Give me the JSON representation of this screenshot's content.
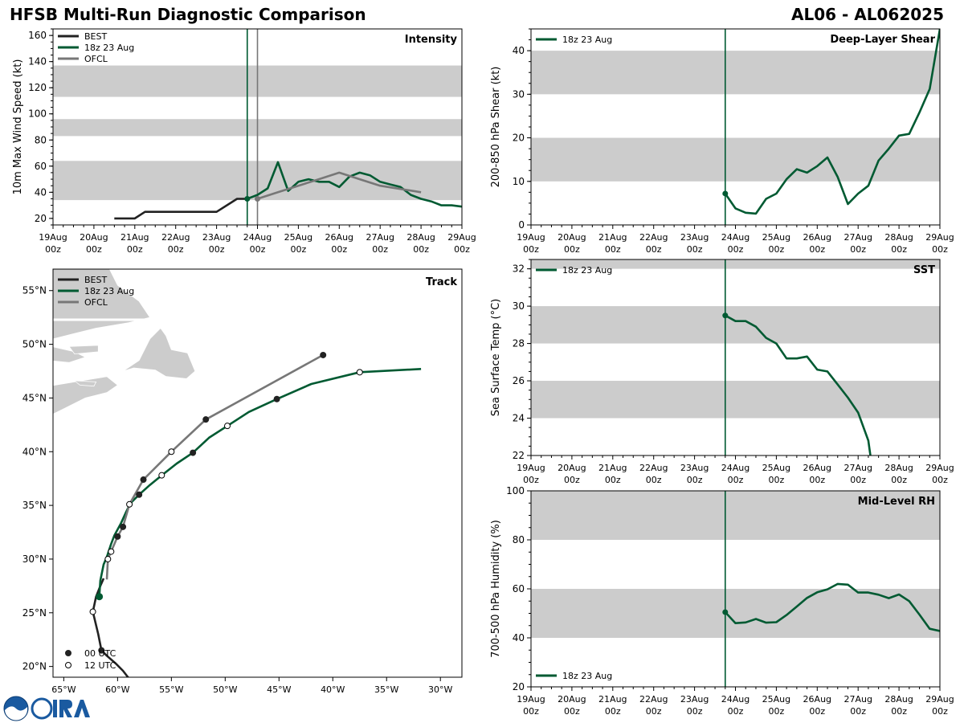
{
  "header": {
    "title": "HFSB Multi-Run Diagnostic Comparison",
    "storm_id": "AL06 - AL062025"
  },
  "colors": {
    "best": "#222222",
    "run": "#005a32",
    "ofcl": "#777777",
    "band": "#cccccc"
  },
  "time_axis": {
    "labels": [
      "19Aug",
      "20Aug",
      "21Aug",
      "22Aug",
      "23Aug",
      "24Aug",
      "25Aug",
      "26Aug",
      "27Aug",
      "28Aug",
      "29Aug"
    ],
    "sublabel": "00z"
  },
  "legend": {
    "best": "BEST",
    "run": "18z 23 Aug",
    "ofcl": "OFCL",
    "utc00": "00 UTC",
    "utc12": "12 UTC"
  },
  "chart_data": [
    {
      "id": "intensity",
      "type": "line",
      "title": "Intensity",
      "ylabel": "10m Max Wind Speed (kt)",
      "ylim": [
        15,
        165
      ],
      "yticks": [
        20,
        40,
        60,
        80,
        100,
        120,
        140,
        160
      ],
      "x_unit": "days since 19Aug 00z",
      "bands": [
        [
          34,
          64
        ],
        [
          83,
          96
        ],
        [
          113,
          137
        ]
      ],
      "vlines": [
        {
          "x": 4.75,
          "series": "run"
        },
        {
          "x": 5.0,
          "series": "ofcl"
        }
      ],
      "series": [
        {
          "name": "BEST",
          "key": "best",
          "x": [
            1.5,
            2.0,
            2.25,
            2.5,
            3.0,
            3.5,
            4.0,
            4.5,
            4.75
          ],
          "y": [
            20,
            20,
            25,
            25,
            25,
            25,
            25,
            35,
            35
          ]
        },
        {
          "name": "18z 23 Aug",
          "key": "run",
          "x": [
            4.75,
            5.0,
            5.25,
            5.5,
            5.75,
            6.0,
            6.25,
            6.5,
            6.75,
            7.0,
            7.25,
            7.5,
            7.75,
            8.0,
            8.25,
            8.5,
            8.75,
            9.0,
            9.25,
            9.5,
            9.75,
            10.0
          ],
          "y": [
            35,
            38,
            43,
            63,
            41,
            48,
            50,
            48,
            48,
            44,
            52,
            55,
            53,
            48,
            46,
            44,
            38,
            35,
            33,
            30,
            30,
            29
          ]
        },
        {
          "name": "OFCL",
          "key": "ofcl",
          "x": [
            5.0,
            5.5,
            6.0,
            6.5,
            7.0,
            7.5,
            8.0,
            9.0
          ],
          "y": [
            35,
            40,
            45,
            50,
            55,
            50,
            45,
            40
          ]
        }
      ]
    },
    {
      "id": "shear",
      "type": "line",
      "title": "Deep-Layer Shear",
      "ylabel": "200-850 hPa Shear (kt)",
      "ylim": [
        0,
        45
      ],
      "yticks": [
        0,
        10,
        20,
        30,
        40
      ],
      "bands": [
        [
          10,
          20
        ],
        [
          30,
          40
        ]
      ],
      "vlines": [
        {
          "x": 4.75,
          "series": "run"
        }
      ],
      "series": [
        {
          "name": "18z 23 Aug",
          "key": "run",
          "x": [
            4.75,
            5.0,
            5.25,
            5.5,
            5.75,
            6.0,
            6.25,
            6.5,
            6.75,
            7.0,
            7.25,
            7.5,
            7.75,
            8.0,
            8.25,
            8.5,
            8.75,
            9.0,
            9.25,
            9.5,
            9.75,
            10.0
          ],
          "y": [
            7.2,
            3.8,
            2.8,
            2.6,
            6.0,
            7.2,
            10.5,
            12.8,
            12.0,
            13.5,
            15.5,
            11.0,
            4.8,
            7.2,
            9.0,
            14.8,
            17.5,
            20.5,
            20.9,
            25.8,
            31.2,
            45.0
          ]
        }
      ]
    },
    {
      "id": "sst",
      "type": "line",
      "title": "SST",
      "ylabel": "Sea Surface Temp (°C)",
      "ylim": [
        22,
        32.5
      ],
      "yticks": [
        22,
        24,
        26,
        28,
        30,
        32
      ],
      "bands": [
        [
          24,
          26
        ],
        [
          28,
          30
        ],
        [
          32,
          32.5
        ]
      ],
      "vlines": [
        {
          "x": 4.75,
          "series": "run"
        }
      ],
      "series": [
        {
          "name": "18z 23 Aug",
          "key": "run",
          "x": [
            4.75,
            5.0,
            5.25,
            5.5,
            5.75,
            6.0,
            6.25,
            6.5,
            6.75,
            7.0,
            7.25,
            7.5,
            7.75,
            8.0,
            8.25,
            8.3
          ],
          "y": [
            29.5,
            29.2,
            29.2,
            28.9,
            28.3,
            28.0,
            27.2,
            27.2,
            27.3,
            26.6,
            26.5,
            25.8,
            25.1,
            24.3,
            22.8,
            22.0
          ]
        }
      ]
    },
    {
      "id": "rh",
      "type": "line",
      "title": "Mid-Level RH",
      "ylabel": "700-500 hPa Humidity (%)",
      "ylim": [
        20,
        100
      ],
      "yticks": [
        20,
        40,
        60,
        80,
        100
      ],
      "bands": [
        [
          40,
          60
        ],
        [
          80,
          100
        ]
      ],
      "vlines": [
        {
          "x": 4.75,
          "series": "run"
        }
      ],
      "series": [
        {
          "name": "18z 23 Aug",
          "key": "run",
          "x": [
            4.75,
            5.0,
            5.25,
            5.5,
            5.75,
            6.0,
            6.25,
            6.5,
            6.75,
            7.0,
            7.25,
            7.5,
            7.75,
            8.0,
            8.25,
            8.5,
            8.75,
            9.0,
            9.25,
            9.5,
            9.75,
            10.0
          ],
          "y": [
            50.5,
            46.0,
            46.3,
            47.7,
            46.2,
            46.4,
            49.3,
            52.8,
            56.3,
            58.6,
            59.8,
            62.0,
            61.7,
            58.5,
            58.5,
            57.6,
            56.2,
            57.7,
            55.0,
            49.5,
            43.7,
            42.8
          ]
        }
      ]
    },
    {
      "id": "track",
      "type": "scatter",
      "title": "Track",
      "xlim": [
        -66,
        -28
      ],
      "ylim": [
        19,
        57
      ],
      "xticks": [
        [
          -65,
          "65°W"
        ],
        [
          -60,
          "60°W"
        ],
        [
          -55,
          "55°W"
        ],
        [
          -50,
          "50°W"
        ],
        [
          -45,
          "45°W"
        ],
        [
          -40,
          "40°W"
        ],
        [
          -35,
          "35°W"
        ],
        [
          -30,
          "30°W"
        ]
      ],
      "yticks": [
        [
          20,
          "20°N"
        ],
        [
          25,
          "25°N"
        ],
        [
          30,
          "30°N"
        ],
        [
          35,
          "35°N"
        ],
        [
          40,
          "40°N"
        ],
        [
          45,
          "45°N"
        ],
        [
          50,
          "50°N"
        ],
        [
          55,
          "55°N"
        ]
      ],
      "series": [
        {
          "name": "BEST",
          "key": "best",
          "lon": [
            -58.8,
            -59.5,
            -60.2,
            -61.0,
            -61.5,
            -61.8,
            -62.3,
            -62.0,
            -61.6,
            -61.3,
            -61.3
          ],
          "lat": [
            18.7,
            19.6,
            20.3,
            21.0,
            21.5,
            23.0,
            25.1,
            26.5,
            27.5,
            28.2,
            28.2
          ],
          "markers": [
            0,
            0,
            0,
            0,
            1,
            0,
            2,
            0,
            0,
            0,
            0
          ]
        },
        {
          "name": "18z 23 Aug",
          "key": "run",
          "lon": [
            -61.7,
            -61.6,
            -61.3,
            -61.0,
            -60.6,
            -60.3,
            -59.7,
            -59.2,
            -58.8,
            -58.0,
            -57.0,
            -55.9,
            -54.5,
            -53.0,
            -51.5,
            -49.8,
            -47.8,
            -45.2,
            -42.0,
            -37.5,
            -31.8
          ],
          "lat": [
            26.5,
            28.0,
            29.5,
            30.2,
            31.4,
            32.2,
            33.3,
            34.4,
            35.2,
            36.0,
            36.9,
            37.8,
            38.9,
            39.9,
            41.3,
            42.4,
            43.7,
            44.9,
            46.3,
            47.4,
            47.7
          ],
          "markers": [
            3,
            0,
            0,
            0,
            0,
            0,
            0,
            0,
            0,
            1,
            0,
            2,
            0,
            1,
            0,
            2,
            0,
            1,
            0,
            2,
            0
          ]
        },
        {
          "name": "OFCL",
          "key": "ofcl",
          "lon": [
            -61.0,
            -60.9,
            -60.6,
            -60.0,
            -59.5,
            -58.9,
            -57.6,
            -55.0,
            -51.8,
            -40.9
          ],
          "lat": [
            28.1,
            30.0,
            30.7,
            32.1,
            33.0,
            35.1,
            37.4,
            40.0,
            43.0,
            49.0
          ],
          "markers": [
            0,
            2,
            2,
            1,
            1,
            2,
            1,
            2,
            1,
            1
          ]
        }
      ]
    }
  ]
}
